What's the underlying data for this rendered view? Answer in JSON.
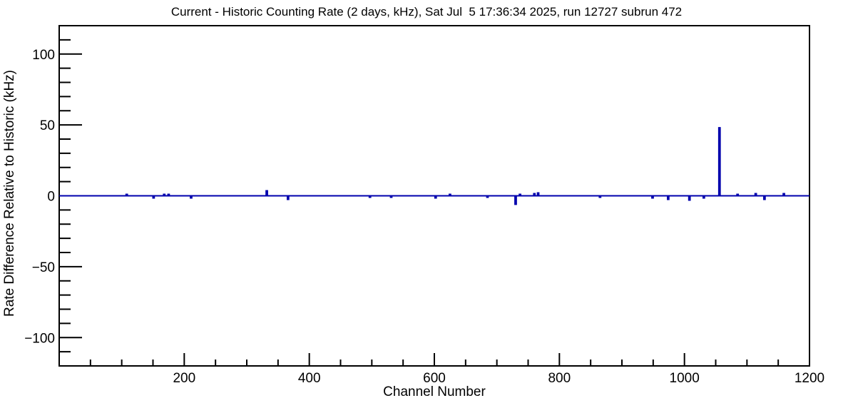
{
  "page": {
    "background": "#ffffff"
  },
  "chart_data": {
    "type": "line",
    "title": "Current - Historic Counting Rate (2 days, kHz), Sat Jul  5 17:36:34 2025, run 12727 subrun 472",
    "xlabel": "Channel Number",
    "ylabel": "Rate Difference Relative to Historic (kHz)",
    "xlim": [
      0,
      1200
    ],
    "ylim": [
      -120,
      120
    ],
    "grid": false,
    "legend": "none",
    "line_color": "#0000ad",
    "axis_color": "#000000",
    "baseline_value": 0,
    "x_major_ticks": [
      {
        "value": 200,
        "label": "200"
      },
      {
        "value": 400,
        "label": "400"
      },
      {
        "value": 600,
        "label": "600"
      },
      {
        "value": 800,
        "label": "800"
      },
      {
        "value": 1000,
        "label": "1000"
      },
      {
        "value": 1200,
        "label": "1200"
      }
    ],
    "x_minor_ticks": [
      50,
      100,
      150,
      250,
      300,
      350,
      450,
      500,
      550,
      650,
      700,
      750,
      850,
      900,
      950,
      1050,
      1100,
      1150
    ],
    "y_major_ticks": [
      {
        "value": -100,
        "label": "−100"
      },
      {
        "value": -50,
        "label": "−50"
      },
      {
        "value": 0,
        "label": "0"
      },
      {
        "value": 50,
        "label": "50"
      },
      {
        "value": 100,
        "label": "100"
      }
    ],
    "y_minor_ticks": [
      -110,
      -90,
      -80,
      -70,
      -60,
      -40,
      -30,
      -20,
      -10,
      10,
      20,
      30,
      40,
      60,
      70,
      80,
      90,
      110
    ],
    "spikes": [
      {
        "channel": 108,
        "value": 1.0
      },
      {
        "channel": 151,
        "value": -1.5
      },
      {
        "channel": 168,
        "value": 1.0
      },
      {
        "channel": 175,
        "value": 1.0
      },
      {
        "channel": 211,
        "value": -1.5
      },
      {
        "channel": 332,
        "value": 3.5
      },
      {
        "channel": 366,
        "value": -2.5
      },
      {
        "channel": 497,
        "value": -1.0
      },
      {
        "channel": 531,
        "value": -1.0
      },
      {
        "channel": 602,
        "value": -1.5
      },
      {
        "channel": 625,
        "value": 1.0
      },
      {
        "channel": 685,
        "value": -1.0
      },
      {
        "channel": 730,
        "value": -6.0
      },
      {
        "channel": 737,
        "value": 1.0
      },
      {
        "channel": 760,
        "value": 1.5
      },
      {
        "channel": 766,
        "value": 2.0
      },
      {
        "channel": 865,
        "value": -1.0
      },
      {
        "channel": 949,
        "value": -1.5
      },
      {
        "channel": 974,
        "value": -2.5
      },
      {
        "channel": 1008,
        "value": -3.0
      },
      {
        "channel": 1031,
        "value": -1.5
      },
      {
        "channel": 1056,
        "value": 48.0
      },
      {
        "channel": 1085,
        "value": 1.0
      },
      {
        "channel": 1114,
        "value": 1.5
      },
      {
        "channel": 1128,
        "value": -2.5
      },
      {
        "channel": 1159,
        "value": 1.5
      }
    ]
  }
}
